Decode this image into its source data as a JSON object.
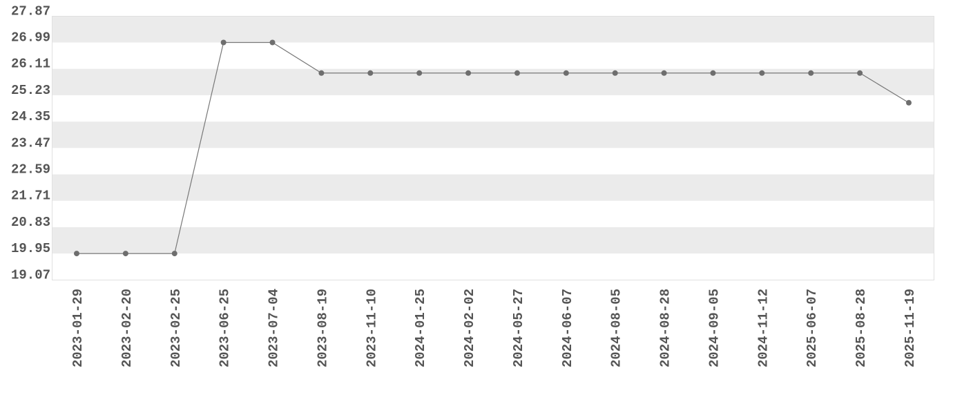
{
  "chart_data": {
    "type": "line",
    "title": "",
    "xlabel": "",
    "ylabel": "",
    "ylim": [
      19.07,
      27.87
    ],
    "y_ticks": [
      "19.07",
      "19.95",
      "20.83",
      "21.71",
      "22.59",
      "23.47",
      "24.35",
      "25.23",
      "26.11",
      "26.99",
      "27.87"
    ],
    "grid": "alternating horizontal bands",
    "categories": [
      "2023-01-29",
      "2023-02-20",
      "2023-02-25",
      "2023-06-25",
      "2023-07-04",
      "2023-08-19",
      "2023-11-10",
      "2024-01-25",
      "2024-02-02",
      "2024-05-27",
      "2024-06-07",
      "2024-08-05",
      "2024-08-28",
      "2024-09-05",
      "2024-11-12",
      "2025-06-07",
      "2025-08-28",
      "2025-11-19"
    ],
    "values": [
      19.95,
      19.95,
      19.95,
      26.99,
      26.99,
      25.97,
      25.97,
      25.97,
      25.97,
      25.97,
      25.97,
      25.97,
      25.97,
      25.97,
      25.97,
      25.97,
      25.97,
      24.98
    ],
    "colors": {
      "line": "#777777",
      "marker": "#6e6e6e",
      "band": "#ebebeb",
      "text": "#555555"
    }
  }
}
